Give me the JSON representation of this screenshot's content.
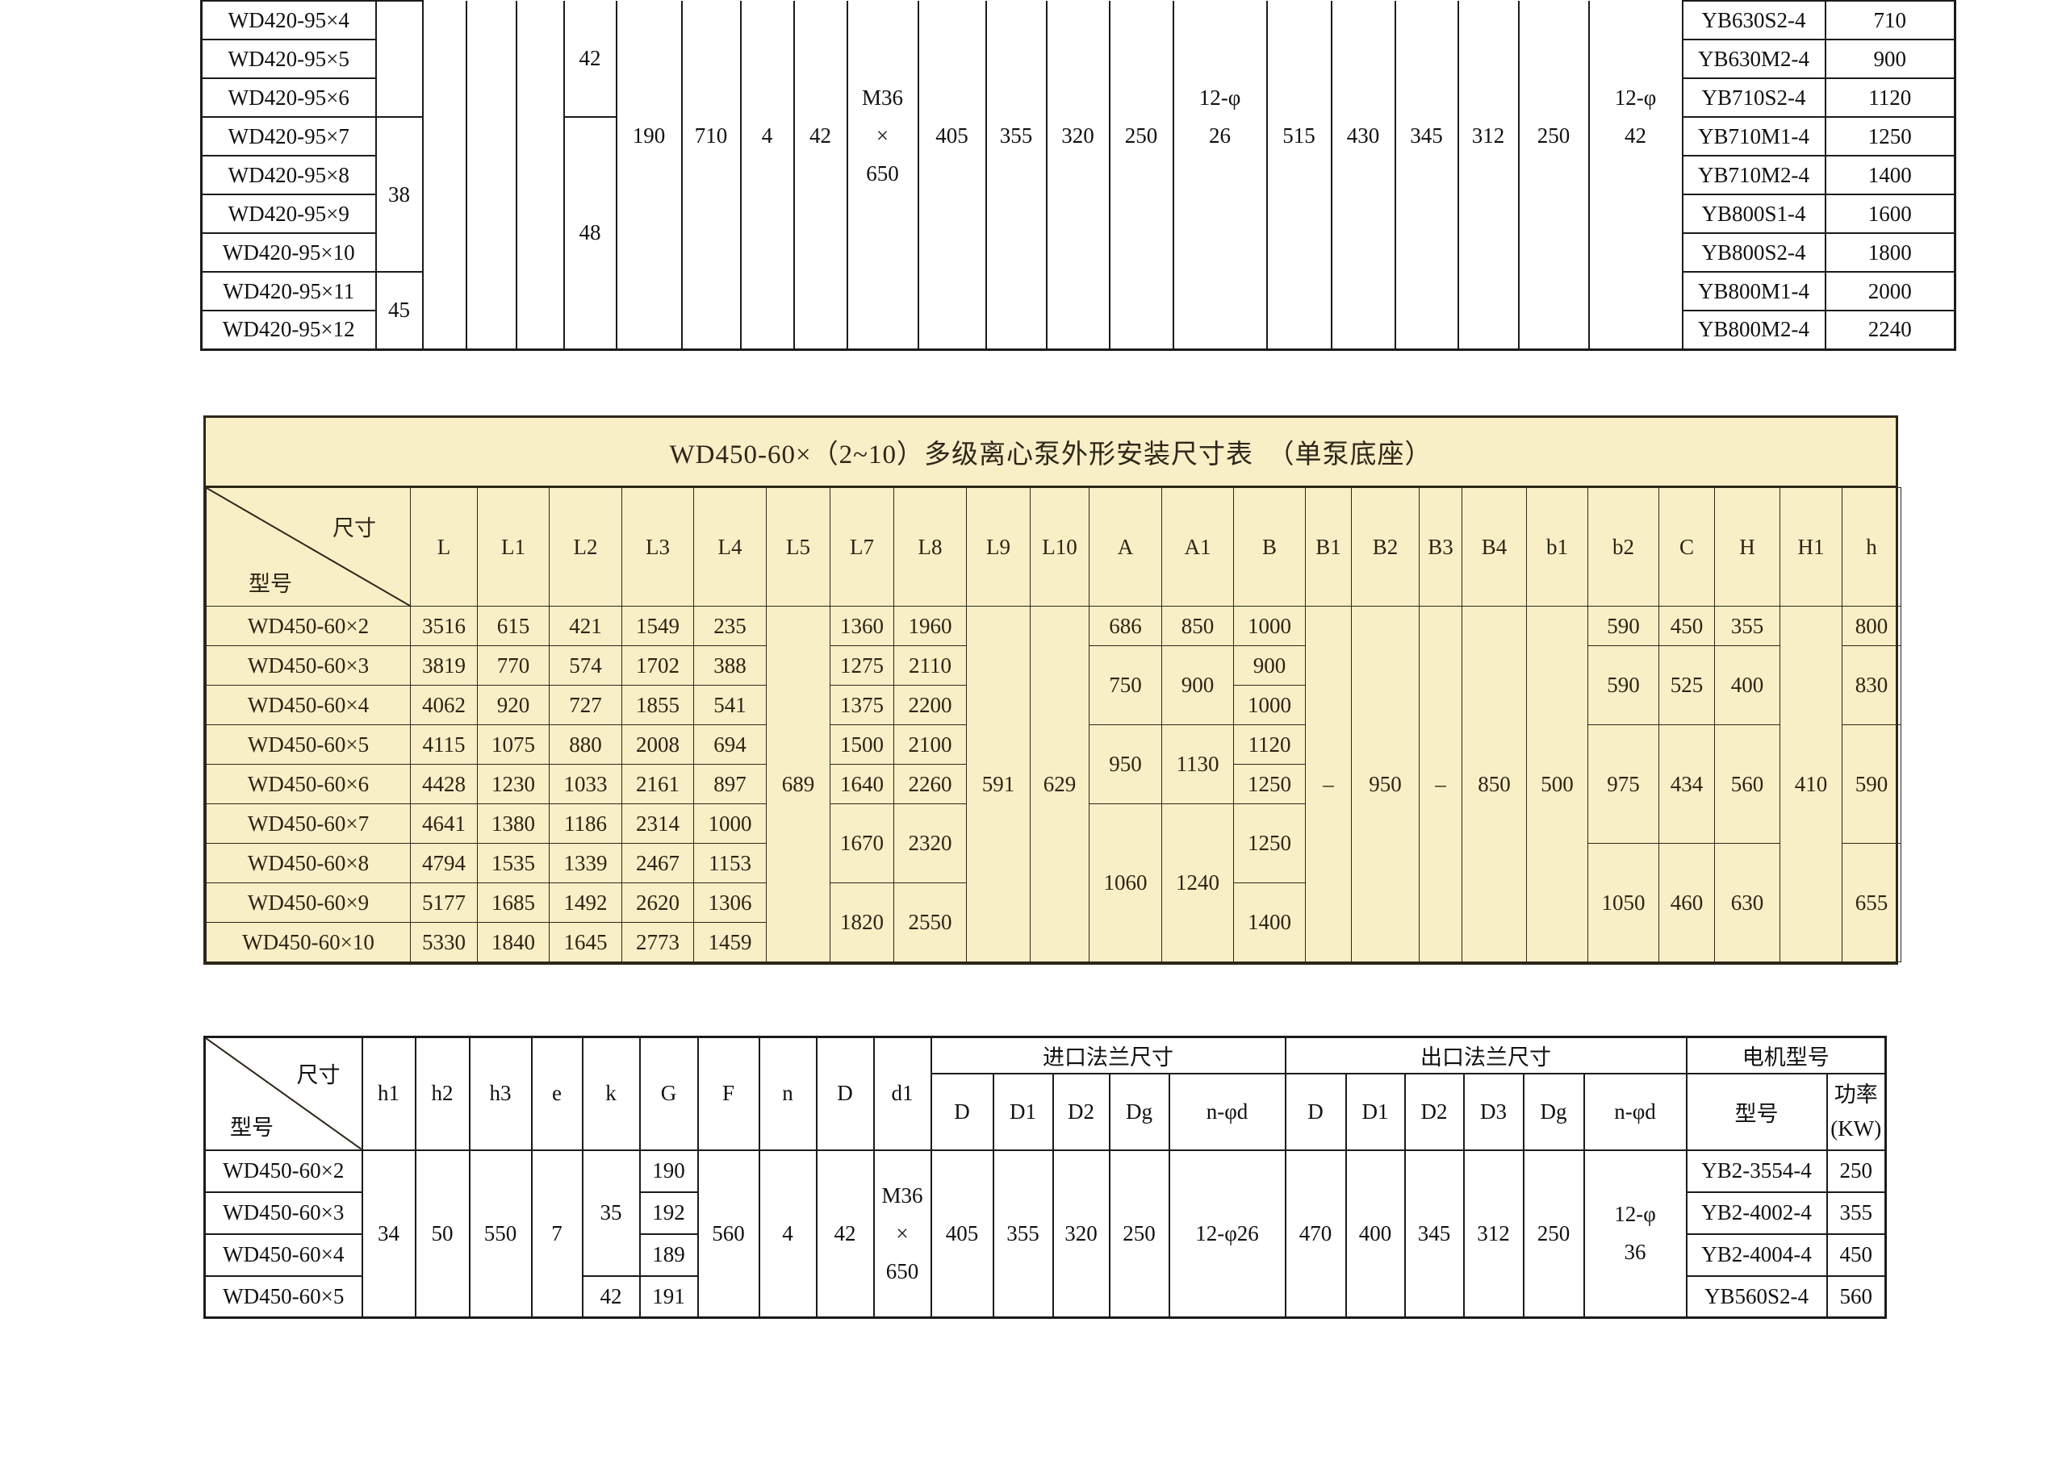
{
  "colors": {
    "paper_background": "#ffffff",
    "highlight_table_background": "#f8efc6",
    "bw_table_border": "#1b1b1b",
    "bw_table_text": "#101010",
    "highlight_table_border": "#2e261a",
    "highlight_table_text": "#2c2414"
  },
  "tables": {
    "top": {
      "description": "WD420-95 series installation dimension table (cut off at top of screenshot)",
      "grid": [
        [
          {
            "t": "WD420-95×4",
            "n": "model-cell"
          },
          {
            "t": "",
            "rs": 3,
            "n": "h1-cell"
          },
          {
            "t": "",
            "rs": 9,
            "c": "noTop",
            "n": "h2-cell"
          },
          {
            "t": "",
            "rs": 9,
            "c": "noTop",
            "n": "h3-cell"
          },
          {
            "t": "",
            "rs": 9,
            "c": "noTop",
            "n": "e-cell"
          },
          {
            "t": "42",
            "rs": 3,
            "c": "noTop",
            "n": "k-cell"
          },
          {
            "t": "190",
            "rs": 9,
            "c": "cut",
            "n": "G-cell"
          },
          {
            "t": "710",
            "rs": 9,
            "c": "cut",
            "n": "F-cell"
          },
          {
            "t": "4",
            "rs": 9,
            "c": "cut",
            "n": "n-cell"
          },
          {
            "t": "42",
            "rs": 9,
            "c": "cut",
            "n": "D-cell"
          },
          {
            "t": [
              "M36",
              "×",
              "650"
            ],
            "rs": 9,
            "c": "cut ml",
            "n": "d1-cell"
          },
          {
            "t": "405",
            "rs": 9,
            "c": "cut",
            "n": "inlet-D-cell"
          },
          {
            "t": "355",
            "rs": 9,
            "c": "cut",
            "n": "inlet-D1-cell"
          },
          {
            "t": "320",
            "rs": 9,
            "c": "cut",
            "n": "inlet-D2-cell"
          },
          {
            "t": "250",
            "rs": 9,
            "c": "cut",
            "n": "inlet-Dg-cell"
          },
          {
            "t": [
              "12-φ",
              "26"
            ],
            "rs": 9,
            "c": "cut2 ml",
            "n": "inlet-n-phi-d-cell"
          },
          {
            "t": "515",
            "rs": 9,
            "c": "cut",
            "n": "outlet-D-cell"
          },
          {
            "t": "430",
            "rs": 9,
            "c": "cut",
            "n": "outlet-D1-cell"
          },
          {
            "t": "345",
            "rs": 9,
            "c": "cut",
            "n": "outlet-D2-cell"
          },
          {
            "t": "312",
            "rs": 9,
            "c": "cut",
            "n": "outlet-D3-cell"
          },
          {
            "t": "250",
            "rs": 9,
            "c": "cut",
            "n": "outlet-Dg-cell"
          },
          {
            "t": [
              "12-φ",
              "42"
            ],
            "rs": 9,
            "c": "cut2 ml",
            "n": "outlet-n-phi-d-cell"
          },
          {
            "t": "YB630S2-4",
            "n": "motor-model-cell"
          },
          {
            "t": "710",
            "n": "motor-power-cell"
          }
        ],
        [
          {
            "t": "WD420-95×5",
            "n": "model-cell"
          },
          {
            "t": "YB630M2-4",
            "n": "motor-model-cell"
          },
          {
            "t": "900",
            "n": "motor-power-cell"
          }
        ],
        [
          {
            "t": "WD420-95×6",
            "n": "model-cell"
          },
          {
            "t": "YB710S2-4",
            "n": "motor-model-cell"
          },
          {
            "t": "1120",
            "n": "motor-power-cell"
          }
        ],
        [
          {
            "t": "WD420-95×7",
            "n": "model-cell"
          },
          {
            "t": "38",
            "rs": 4,
            "n": "h1-cell"
          },
          {
            "t": "48",
            "rs": 6,
            "n": "k-cell"
          },
          {
            "t": "YB710M1-4",
            "n": "motor-model-cell"
          },
          {
            "t": "1250",
            "n": "motor-power-cell"
          }
        ],
        [
          {
            "t": "WD420-95×8",
            "n": "model-cell"
          },
          {
            "t": "YB710M2-4",
            "n": "motor-model-cell"
          },
          {
            "t": "1400",
            "n": "motor-power-cell"
          }
        ],
        [
          {
            "t": "WD420-95×9",
            "n": "model-cell"
          },
          {
            "t": "YB800S1-4",
            "n": "motor-model-cell"
          },
          {
            "t": "1600",
            "n": "motor-power-cell"
          }
        ],
        [
          {
            "t": "WD420-95×10",
            "n": "model-cell"
          },
          {
            "t": "YB800S2-4",
            "n": "motor-model-cell"
          },
          {
            "t": "1800",
            "n": "motor-power-cell"
          }
        ],
        [
          {
            "t": "WD420-95×11",
            "n": "model-cell"
          },
          {
            "t": "45",
            "rs": 2,
            "n": "h1-cell"
          },
          {
            "t": "YB800M1-4",
            "n": "motor-model-cell"
          },
          {
            "t": "2000",
            "n": "motor-power-cell"
          }
        ],
        [
          {
            "t": "WD420-95×12",
            "n": "model-cell"
          },
          {
            "t": "YB800M2-4",
            "n": "motor-model-cell"
          },
          {
            "t": "2240",
            "n": "motor-power-cell"
          }
        ]
      ]
    },
    "middle": {
      "title": "WD450-60×（2~10）多级离心泵外形安装尺寸表　（单泵底座）",
      "grid": [
        [
          {
            "t": [
              "尺寸",
              "型号"
            ],
            "c": "diag",
            "n": "diagonal-header"
          },
          {
            "t": "L",
            "n": "col-header"
          },
          {
            "t": "L1",
            "n": "col-header"
          },
          {
            "t": "L2",
            "n": "col-header"
          },
          {
            "t": "L3",
            "n": "col-header"
          },
          {
            "t": "L4",
            "n": "col-header"
          },
          {
            "t": "L5",
            "n": "col-header"
          },
          {
            "t": "L7",
            "n": "col-header"
          },
          {
            "t": "L8",
            "n": "col-header"
          },
          {
            "t": "L9",
            "n": "col-header"
          },
          {
            "t": "L10",
            "n": "col-header"
          },
          {
            "t": "A",
            "n": "col-header"
          },
          {
            "t": "A1",
            "n": "col-header"
          },
          {
            "t": "B",
            "n": "col-header"
          },
          {
            "t": "B1",
            "n": "col-header"
          },
          {
            "t": "B2",
            "n": "col-header"
          },
          {
            "t": "B3",
            "n": "col-header"
          },
          {
            "t": "B4",
            "n": "col-header"
          },
          {
            "t": "b1",
            "n": "col-header"
          },
          {
            "t": "b2",
            "n": "col-header"
          },
          {
            "t": "C",
            "n": "col-header"
          },
          {
            "t": "H",
            "n": "col-header"
          },
          {
            "t": "H1",
            "n": "col-header"
          },
          {
            "t": "h",
            "n": "col-header"
          }
        ],
        [
          {
            "t": "WD450-60×2",
            "n": "model-cell"
          },
          "3516",
          "615",
          "421",
          "1549",
          "235",
          {
            "t": "689",
            "rs": 9
          },
          "1360",
          "1960",
          {
            "t": "591",
            "rs": 9
          },
          {
            "t": "629",
            "rs": 9
          },
          "686",
          "850",
          "1000",
          {
            "t": "–",
            "rs": 9
          },
          {
            "t": "950",
            "rs": 9
          },
          {
            "t": "–",
            "rs": 9
          },
          {
            "t": "850",
            "rs": 9
          },
          {
            "t": "500",
            "rs": 9
          },
          "590",
          "450",
          "355",
          {
            "t": "410",
            "rs": 9
          },
          "800"
        ],
        [
          {
            "t": "WD450-60×3",
            "n": "model-cell"
          },
          "3819",
          "770",
          "574",
          "1702",
          "388",
          "1275",
          "2110",
          {
            "t": "750",
            "rs": 2
          },
          {
            "t": "900",
            "rs": 2
          },
          "900",
          {
            "t": "590",
            "rs": 2
          },
          {
            "t": "525",
            "rs": 2
          },
          {
            "t": "400",
            "rs": 2
          },
          {
            "t": "830",
            "rs": 2
          }
        ],
        [
          {
            "t": "WD450-60×4",
            "n": "model-cell"
          },
          "4062",
          "920",
          "727",
          "1855",
          "541",
          "1375",
          "2200",
          "1000"
        ],
        [
          {
            "t": "WD450-60×5",
            "n": "model-cell"
          },
          "4115",
          "1075",
          "880",
          "2008",
          "694",
          "1500",
          "2100",
          {
            "t": "950",
            "rs": 2
          },
          {
            "t": "1130",
            "rs": 2
          },
          "1120",
          {
            "t": "975",
            "rs": 3
          },
          {
            "t": "434",
            "rs": 3
          },
          {
            "t": "560",
            "rs": 3
          },
          {
            "t": "590",
            "rs": 3
          }
        ],
        [
          {
            "t": "WD450-60×6",
            "n": "model-cell"
          },
          "4428",
          "1230",
          "1033",
          "2161",
          "897",
          "1640",
          "2260",
          "1250"
        ],
        [
          {
            "t": "WD450-60×7",
            "n": "model-cell"
          },
          "4641",
          "1380",
          "1186",
          "2314",
          "1000",
          {
            "t": "1670",
            "rs": 2
          },
          {
            "t": "2320",
            "rs": 2
          },
          {
            "t": "1060",
            "rs": 4
          },
          {
            "t": "1240",
            "rs": 4
          },
          {
            "t": "1250",
            "rs": 2
          }
        ],
        [
          {
            "t": "WD450-60×8",
            "n": "model-cell"
          },
          "4794",
          "1535",
          "1339",
          "2467",
          "1153",
          {
            "t": "1050",
            "rs": 3
          },
          {
            "t": "460",
            "rs": 3
          },
          {
            "t": "630",
            "rs": 3
          },
          {
            "t": "655",
            "rs": 3
          }
        ],
        [
          {
            "t": "WD450-60×9",
            "n": "model-cell"
          },
          "5177",
          "1685",
          "1492",
          "2620",
          "1306",
          {
            "t": "1820",
            "rs": 2
          },
          {
            "t": "2550",
            "rs": 2
          },
          {
            "t": "1400",
            "rs": 2
          }
        ],
        [
          {
            "t": "WD450-60×10",
            "n": "model-cell"
          },
          "5330",
          "1840",
          "1645",
          "2773",
          "1459"
        ]
      ]
    },
    "bottom": {
      "description": "WD450-60 series: heights, flange and motor table",
      "grid": [
        [
          {
            "t": [
              "尺寸",
              "型号"
            ],
            "rs": 2,
            "c": "diag diagB",
            "n": "diagonal-header"
          },
          {
            "t": "h1",
            "rs": 2,
            "n": "col-header"
          },
          {
            "t": "h2",
            "rs": 2,
            "n": "col-header"
          },
          {
            "t": "h3",
            "rs": 2,
            "n": "col-header"
          },
          {
            "t": "e",
            "rs": 2,
            "n": "col-header"
          },
          {
            "t": "k",
            "rs": 2,
            "n": "col-header"
          },
          {
            "t": "G",
            "rs": 2,
            "n": "col-header"
          },
          {
            "t": "F",
            "rs": 2,
            "n": "col-header"
          },
          {
            "t": "n",
            "rs": 2,
            "n": "col-header"
          },
          {
            "t": "D",
            "rs": 2,
            "n": "col-header"
          },
          {
            "t": "d1",
            "rs": 2,
            "n": "col-header"
          },
          {
            "t": "进口法兰尺寸",
            "cs": 5,
            "n": "inlet-flange-group-header"
          },
          {
            "t": "出口法兰尺寸",
            "cs": 6,
            "n": "outlet-flange-group-header"
          },
          {
            "t": "电机型号",
            "cs": 2,
            "n": "motor-group-header"
          }
        ],
        [
          {
            "t": "D",
            "n": "col-header"
          },
          {
            "t": "D1",
            "n": "col-header"
          },
          {
            "t": "D2",
            "n": "col-header"
          },
          {
            "t": "Dg",
            "n": "col-header"
          },
          {
            "t": "n-φd",
            "n": "col-header"
          },
          {
            "t": "D",
            "n": "col-header"
          },
          {
            "t": "D1",
            "n": "col-header"
          },
          {
            "t": "D2",
            "n": "col-header"
          },
          {
            "t": "D3",
            "n": "col-header"
          },
          {
            "t": "Dg",
            "n": "col-header"
          },
          {
            "t": "n-φd",
            "n": "col-header"
          },
          {
            "t": "型号",
            "n": "col-header"
          },
          {
            "t": [
              "功率",
              "(KW)"
            ],
            "c": "ml2",
            "n": "col-header"
          }
        ],
        [
          {
            "t": "WD450-60×2",
            "n": "model-cell"
          },
          {
            "t": "34",
            "rs": 4
          },
          {
            "t": "50",
            "rs": 4
          },
          {
            "t": "550",
            "rs": 4
          },
          {
            "t": "7",
            "rs": 4
          },
          {
            "t": "35",
            "rs": 3
          },
          "190",
          {
            "t": "560",
            "rs": 4
          },
          {
            "t": "4",
            "rs": 4
          },
          {
            "t": "42",
            "rs": 4
          },
          {
            "t": [
              "M36",
              "×",
              "650"
            ],
            "rs": 4,
            "c": "ml",
            "n": "d1-cell"
          },
          {
            "t": "405",
            "rs": 4
          },
          {
            "t": "355",
            "rs": 4
          },
          {
            "t": "320",
            "rs": 4
          },
          {
            "t": "250",
            "rs": 4
          },
          {
            "t": "12-φ26",
            "rs": 4
          },
          {
            "t": "470",
            "rs": 4
          },
          {
            "t": "400",
            "rs": 4
          },
          {
            "t": "345",
            "rs": 4
          },
          {
            "t": "312",
            "rs": 4
          },
          {
            "t": "250",
            "rs": 4
          },
          {
            "t": [
              "12-φ",
              "36"
            ],
            "rs": 4,
            "c": "ml",
            "n": "outlet-n-phi-d-cell"
          },
          {
            "t": "YB2-3554-4",
            "n": "motor-model-cell"
          },
          {
            "t": "250",
            "n": "motor-power-cell"
          }
        ],
        [
          {
            "t": "WD450-60×3",
            "n": "model-cell"
          },
          "192",
          {
            "t": "YB2-4002-4",
            "n": "motor-model-cell"
          },
          {
            "t": "355",
            "n": "motor-power-cell"
          }
        ],
        [
          {
            "t": "WD450-60×4",
            "n": "model-cell"
          },
          "189",
          {
            "t": "YB2-4004-4",
            "n": "motor-model-cell"
          },
          {
            "t": "450",
            "n": "motor-power-cell"
          }
        ],
        [
          {
            "t": "WD450-60×5",
            "n": "model-cell"
          },
          "42",
          "191",
          {
            "t": "YB560S2-4",
            "n": "motor-model-cell"
          },
          {
            "t": "560",
            "n": "motor-power-cell"
          }
        ]
      ]
    }
  }
}
